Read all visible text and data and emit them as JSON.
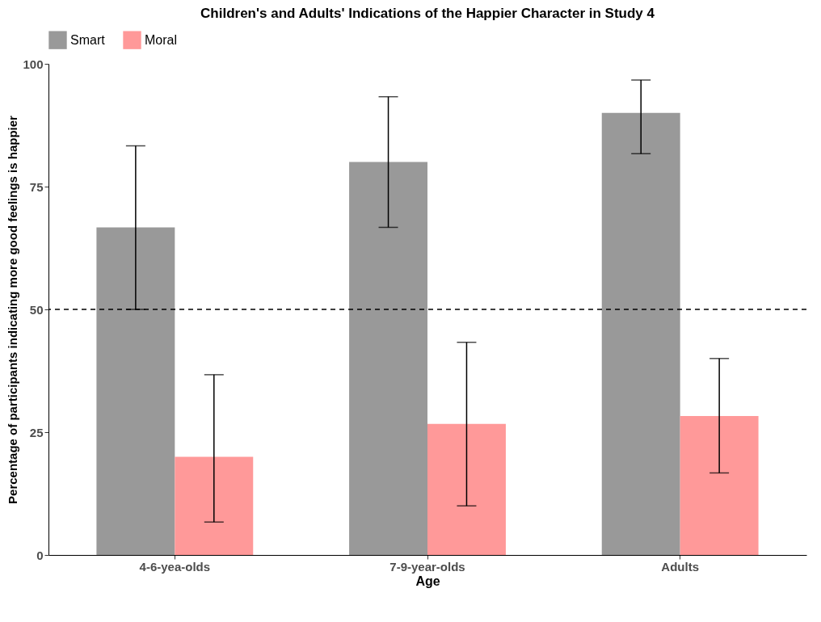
{
  "chart_data": {
    "type": "bar",
    "title": "Children's and Adults' Indications of the Happier Character in Study 4",
    "xlabel": "Age",
    "ylabel": "Percentage of participants indicating more good feelings is happier",
    "categories": [
      "4-6-yea-olds",
      "7-9-year-olds",
      "Adults"
    ],
    "series": [
      {
        "name": "Smart",
        "color": "#999999",
        "values": [
          66.7,
          80,
          90
        ],
        "errors": [
          [
            50,
            83.3
          ],
          [
            66.7,
            93.3
          ],
          [
            81.7,
            96.7
          ]
        ]
      },
      {
        "name": "Moral",
        "color": "#ff9999",
        "values": [
          20,
          26.7,
          28.3
        ],
        "errors": [
          [
            6.7,
            36.7
          ],
          [
            10,
            43.3
          ],
          [
            16.7,
            40
          ]
        ]
      }
    ],
    "ylim": [
      0,
      100
    ],
    "yticks": [
      0,
      25,
      50,
      75,
      100
    ],
    "grid": false,
    "legend": "top",
    "ref_lines": [
      {
        "axis": "y",
        "value": 50,
        "line_style": "dashed"
      }
    ]
  }
}
